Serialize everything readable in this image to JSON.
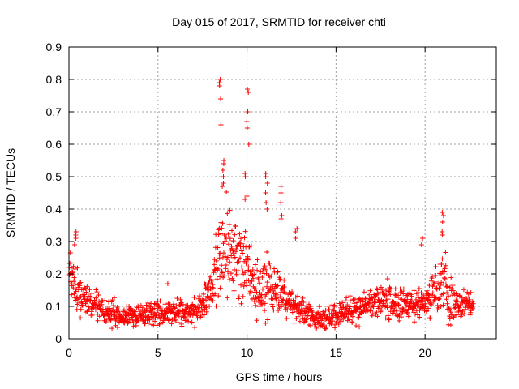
{
  "chart_data": {
    "type": "scatter",
    "title": "Day 015 of 2017, SRMTID for receiver chti",
    "xlabel": "GPS time / hours",
    "ylabel": "SRMTID / TECUs",
    "xlim": [
      0,
      24
    ],
    "ylim": [
      0,
      0.9
    ],
    "xticks": [
      0,
      5,
      10,
      15,
      20
    ],
    "xtick_labels": [
      "0",
      "5",
      "10",
      "15",
      "20"
    ],
    "yticks": [
      0,
      0.1,
      0.2,
      0.3,
      0.4,
      0.5,
      0.6,
      0.7,
      0.8,
      0.9
    ],
    "ytick_labels": [
      "0",
      "0.1",
      "0.2",
      "0.3",
      "0.4",
      "0.5",
      "0.6",
      "0.7",
      "0.8",
      "0.9"
    ],
    "grid": true,
    "marker": "+",
    "color": "#ff0000",
    "envelope": {
      "x": [
        0,
        0.1,
        0.3,
        0.6,
        1.0,
        1.5,
        2.0,
        3.0,
        4.0,
        5.0,
        6.0,
        7.0,
        7.5,
        8.0,
        8.3,
        8.6,
        9.0,
        9.5,
        10.0,
        10.4,
        10.8,
        11.2,
        11.6,
        12.0,
        12.5,
        13.0,
        14.0,
        15.0,
        16.0,
        17.0,
        18.0,
        19.0,
        20.0,
        20.5,
        21.0,
        21.5,
        22.0,
        22.7
      ],
      "median": [
        0.19,
        0.2,
        0.17,
        0.14,
        0.12,
        0.1,
        0.085,
        0.07,
        0.07,
        0.08,
        0.08,
        0.08,
        0.1,
        0.15,
        0.22,
        0.27,
        0.28,
        0.25,
        0.22,
        0.17,
        0.15,
        0.17,
        0.15,
        0.13,
        0.1,
        0.09,
        0.06,
        0.07,
        0.09,
        0.11,
        0.12,
        0.1,
        0.11,
        0.14,
        0.19,
        0.12,
        0.1,
        0.11
      ],
      "spread": [
        0.05,
        0.07,
        0.06,
        0.04,
        0.03,
        0.03,
        0.03,
        0.025,
        0.025,
        0.025,
        0.025,
        0.025,
        0.03,
        0.05,
        0.08,
        0.1,
        0.1,
        0.09,
        0.08,
        0.06,
        0.06,
        0.08,
        0.06,
        0.05,
        0.04,
        0.03,
        0.025,
        0.025,
        0.03,
        0.035,
        0.04,
        0.03,
        0.035,
        0.05,
        0.07,
        0.05,
        0.03,
        0.03
      ]
    },
    "spikes": [
      {
        "x": 0.35,
        "values": [
          0.31,
          0.33,
          0.32,
          0.29
        ]
      },
      {
        "x": 8.5,
        "values": [
          0.8,
          0.79,
          0.78,
          0.74,
          0.66
        ]
      },
      {
        "x": 8.65,
        "values": [
          0.55,
          0.54,
          0.52,
          0.5,
          0.48,
          0.47
        ]
      },
      {
        "x": 10.05,
        "values": [
          0.77,
          0.76,
          0.7,
          0.67,
          0.65,
          0.6
        ]
      },
      {
        "x": 9.95,
        "values": [
          0.51,
          0.5,
          0.44,
          0.43
        ]
      },
      {
        "x": 11.1,
        "values": [
          0.51,
          0.5,
          0.48,
          0.45,
          0.42,
          0.4
        ]
      },
      {
        "x": 11.95,
        "values": [
          0.47,
          0.45,
          0.42,
          0.38,
          0.37
        ]
      },
      {
        "x": 12.75,
        "values": [
          0.34,
          0.33,
          0.31
        ]
      },
      {
        "x": 5.6,
        "values": [
          0.17
        ]
      },
      {
        "x": 19.8,
        "values": [
          0.31,
          0.29
        ]
      },
      {
        "x": 21.0,
        "values": [
          0.39,
          0.38,
          0.36,
          0.33,
          0.32
        ]
      }
    ]
  }
}
